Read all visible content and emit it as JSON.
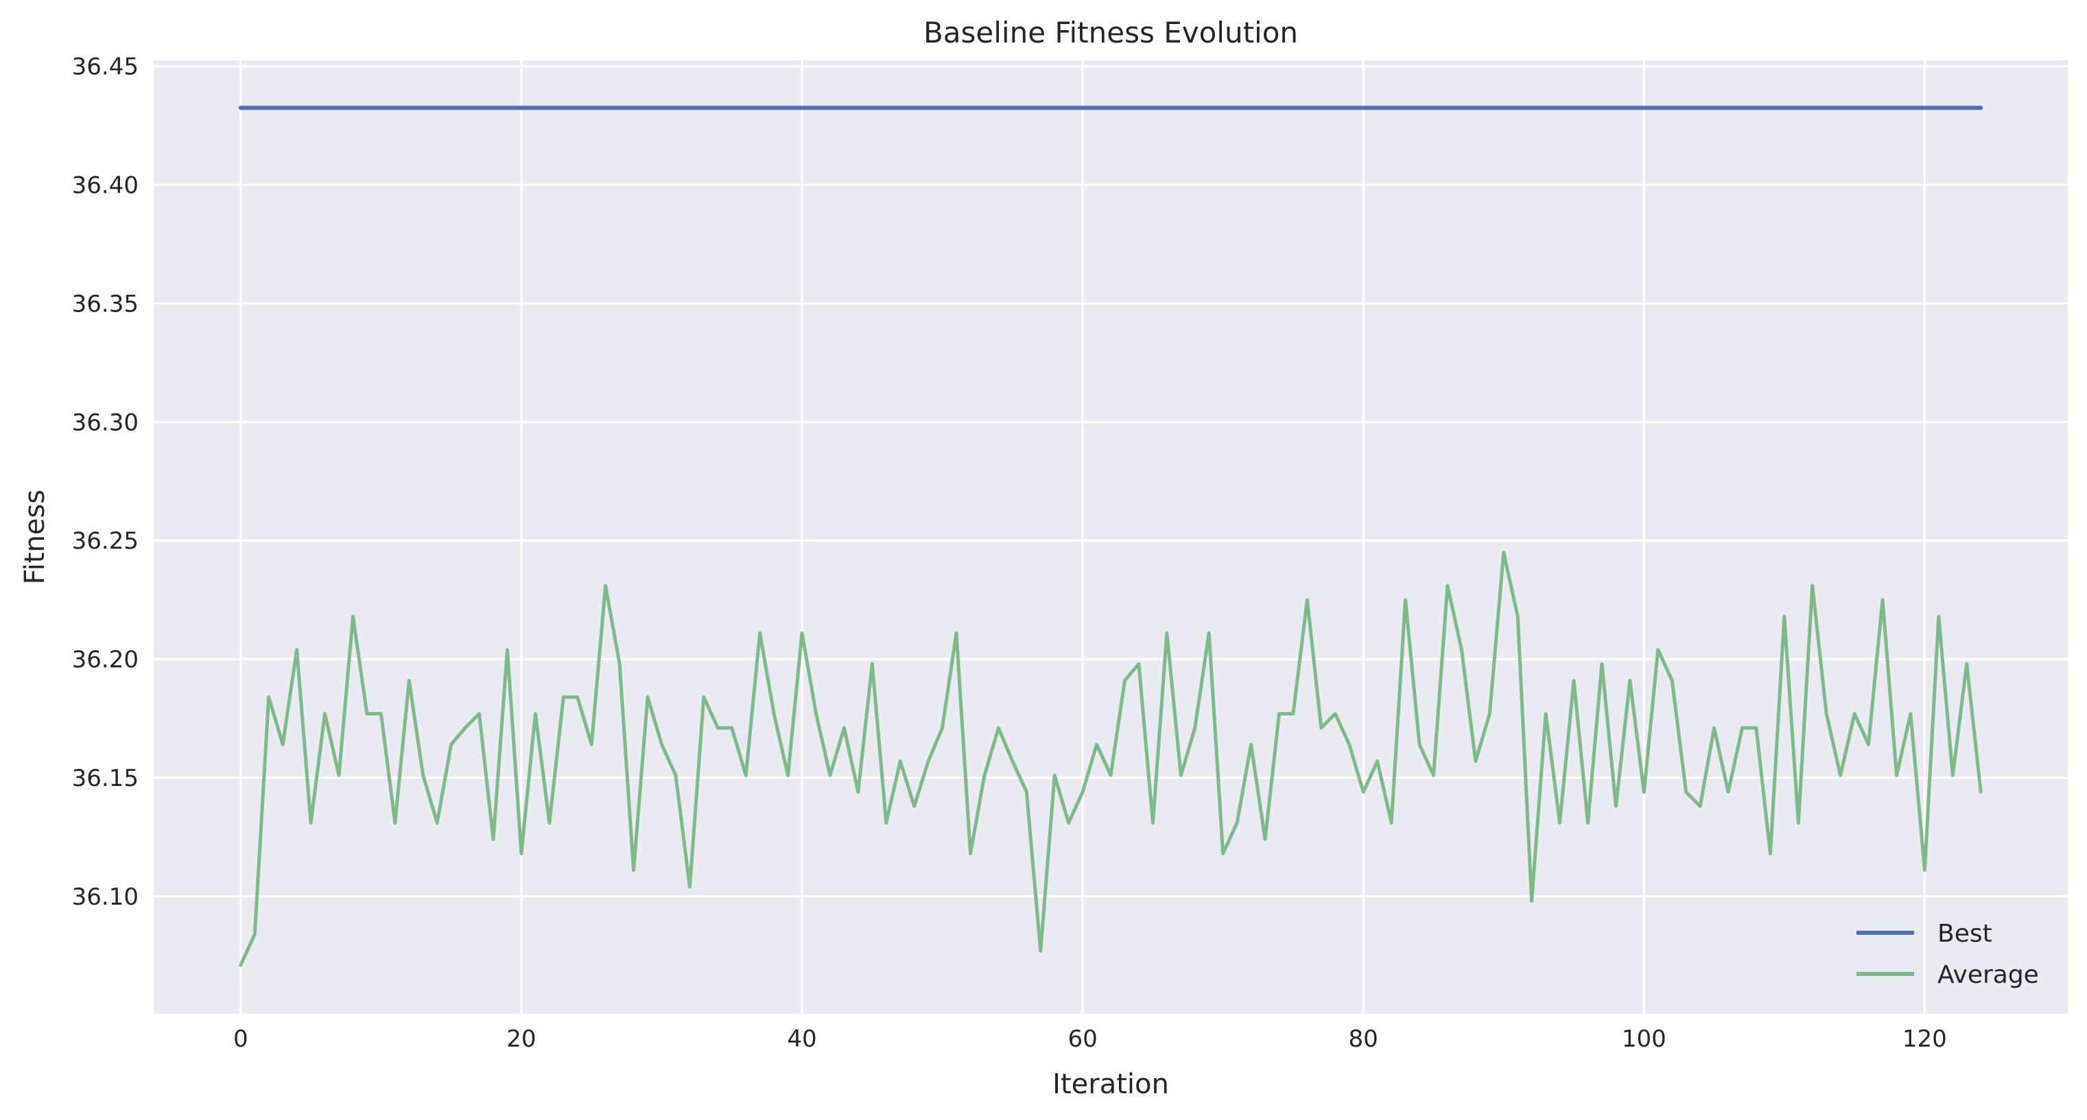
{
  "chart_data": {
    "type": "line",
    "title": "Baseline Fitness Evolution",
    "xlabel": "Iteration",
    "ylabel": "Fitness",
    "xlim": [
      -6.2,
      130.2
    ],
    "ylim": [
      36.0505,
      36.4525
    ],
    "xticks": [
      0,
      20,
      40,
      60,
      80,
      100,
      120
    ],
    "yticks": [
      36.1,
      36.15,
      36.2,
      36.25,
      36.3,
      36.35,
      36.4,
      36.45
    ],
    "ytick_labels": [
      "36.10",
      "36.15",
      "36.20",
      "36.25",
      "36.30",
      "36.35",
      "36.40",
      "36.45"
    ],
    "grid": true,
    "legend_position": "lower-right",
    "colors": {
      "best": "#4c72b0",
      "average": "#7fb98a",
      "background": "#eaeaf2",
      "grid": "#ffffff"
    },
    "series": [
      {
        "name": "Best",
        "x": [
          0,
          124
        ],
        "values": [
          36.4325,
          36.4325
        ]
      },
      {
        "name": "Average",
        "x": [
          0,
          1,
          2,
          3,
          4,
          5,
          6,
          7,
          8,
          9,
          10,
          11,
          12,
          13,
          14,
          15,
          16,
          17,
          18,
          19,
          20,
          21,
          22,
          23,
          24,
          25,
          26,
          27,
          28,
          29,
          30,
          31,
          32,
          33,
          34,
          35,
          36,
          37,
          38,
          39,
          40,
          41,
          42,
          43,
          44,
          45,
          46,
          47,
          48,
          49,
          50,
          51,
          52,
          53,
          54,
          55,
          56,
          57,
          58,
          59,
          60,
          61,
          62,
          63,
          64,
          65,
          66,
          67,
          68,
          69,
          70,
          71,
          72,
          73,
          74,
          75,
          76,
          77,
          78,
          79,
          80,
          81,
          82,
          83,
          84,
          85,
          86,
          87,
          88,
          89,
          90,
          91,
          92,
          93,
          94,
          95,
          96,
          97,
          98,
          99,
          100,
          101,
          102,
          103,
          104,
          105,
          106,
          107,
          108,
          109,
          110,
          111,
          112,
          113,
          114,
          115,
          116,
          117,
          118,
          119,
          120,
          121,
          122,
          123,
          124
        ],
        "values": [
          36.071,
          36.084,
          36.184,
          36.164,
          36.204,
          36.131,
          36.177,
          36.151,
          36.218,
          36.177,
          36.177,
          36.131,
          36.191,
          36.151,
          36.131,
          36.164,
          36.171,
          36.177,
          36.124,
          36.204,
          36.118,
          36.177,
          36.131,
          36.184,
          36.184,
          36.164,
          36.231,
          36.198,
          36.111,
          36.184,
          36.164,
          36.151,
          36.104,
          36.184,
          36.171,
          36.171,
          36.151,
          36.211,
          36.177,
          36.151,
          36.211,
          36.177,
          36.151,
          36.171,
          36.144,
          36.198,
          36.131,
          36.157,
          36.138,
          36.157,
          36.171,
          36.211,
          36.118,
          36.151,
          36.171,
          36.157,
          36.144,
          36.077,
          36.151,
          36.131,
          36.144,
          36.164,
          36.151,
          36.191,
          36.198,
          36.131,
          36.211,
          36.151,
          36.171,
          36.211,
          36.118,
          36.131,
          36.164,
          36.124,
          36.177,
          36.177,
          36.225,
          36.171,
          36.177,
          36.164,
          36.144,
          36.157,
          36.131,
          36.225,
          36.164,
          36.151,
          36.231,
          36.204,
          36.157,
          36.177,
          36.245,
          36.218,
          36.098,
          36.177,
          36.131,
          36.191,
          36.131,
          36.198,
          36.138,
          36.191,
          36.144,
          36.204,
          36.191,
          36.144,
          36.138,
          36.171,
          36.144,
          36.171,
          36.171,
          36.118,
          36.218,
          36.131,
          36.231,
          36.177,
          36.151,
          36.177,
          36.164,
          36.225,
          36.151,
          36.177,
          36.111,
          36.218,
          36.151,
          36.198,
          36.144
        ]
      }
    ]
  }
}
